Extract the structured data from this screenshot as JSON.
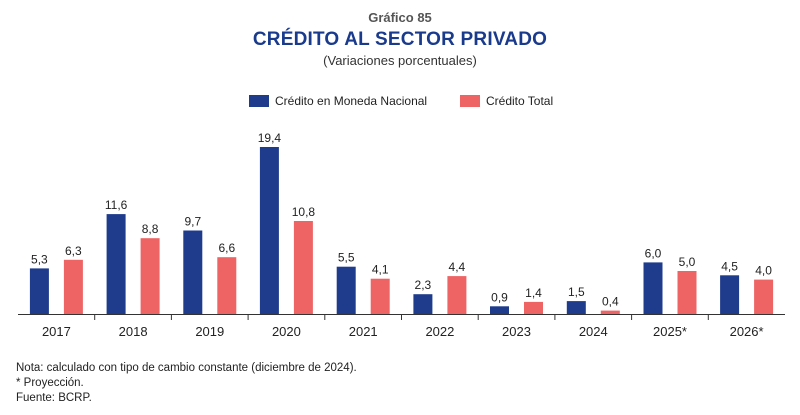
{
  "header": {
    "kicker": "Gráfico 85",
    "title": "CRÉDITO AL SECTOR PRIVADO",
    "subtitle": "(Variaciones porcentuales)"
  },
  "colors": {
    "moneda_nacional": "#1f3c8c",
    "credito_total": "#ee6464"
  },
  "chart_data": {
    "type": "bar",
    "title": "CRÉDITO AL SECTOR PRIVADO",
    "subtitle": "(Variaciones porcentuales)",
    "categories": [
      "2017",
      "2018",
      "2019",
      "2020",
      "2021",
      "2022",
      "2023",
      "2024",
      "2025*",
      "2026*"
    ],
    "series": [
      {
        "name": "Crédito en Moneda Nacional",
        "values": [
          5.3,
          11.6,
          9.7,
          19.4,
          5.5,
          2.3,
          0.9,
          1.5,
          6.0,
          4.5
        ],
        "labels": [
          "5,3",
          "11,6",
          "9,7",
          "19,4",
          "5,5",
          "2,3",
          "0,9",
          "1,5",
          "6,0",
          "4,5"
        ]
      },
      {
        "name": "Crédito Total",
        "values": [
          6.3,
          8.8,
          6.6,
          10.8,
          4.1,
          4.4,
          1.4,
          0.4,
          5.0,
          4.0
        ],
        "labels": [
          "6,3",
          "8,8",
          "6,6",
          "10,8",
          "4,1",
          "4,4",
          "1,4",
          "0,4",
          "5,0",
          "4,0"
        ]
      }
    ],
    "ylim": [
      0,
      20
    ],
    "grid": false,
    "legend_position": "top"
  },
  "notes": {
    "line1": "Nota: calculado con tipo de cambio constante (diciembre de 2024).",
    "line2": "* Proyección.",
    "line3": "Fuente: BCRP."
  }
}
